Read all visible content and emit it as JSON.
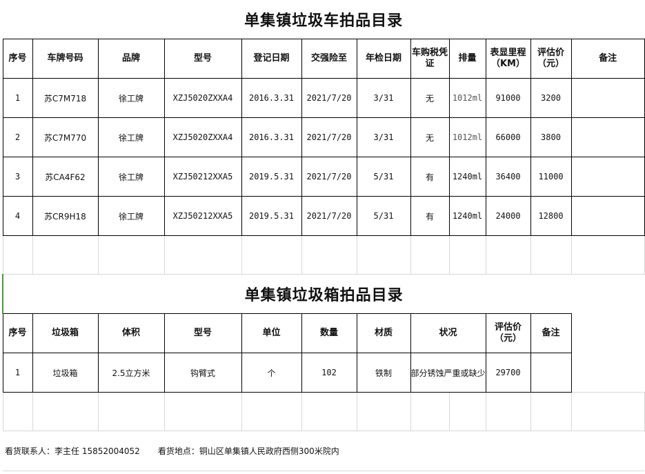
{
  "vehicles": {
    "title": "单集镇垃圾车拍品目录",
    "headers": [
      "序号",
      "车牌号码",
      "品牌",
      "型号",
      "登记日期",
      "交强险至",
      "年检日期",
      "车购税凭证",
      "排量",
      "表显里程（KM）",
      "评估价（元）",
      "备注"
    ],
    "rows": [
      [
        "1",
        "苏C7M718",
        "徐工牌",
        "XZJ5020ZXXA4",
        "2016.3.31",
        "2021/7/20",
        "3/31",
        "无",
        "1012ml",
        "91000",
        "3200",
        ""
      ],
      [
        "2",
        "苏C7M770",
        "徐工牌",
        "XZJ5020ZXXA4",
        "2016.3.31",
        "2021/7/20",
        "3/31",
        "无",
        "1012ml",
        "66000",
        "3800",
        ""
      ],
      [
        "3",
        "苏CA4F62",
        "徐工牌",
        "XZJ50212XXA5",
        "2019.5.31",
        "2021/7/20",
        "5/31",
        "有",
        "1240ml",
        "36400",
        "11000",
        ""
      ],
      [
        "4",
        "苏CR9H18",
        "徐工牌",
        "XZJ50212XXA5",
        "2019.5.31",
        "2021/7/20",
        "5/31",
        "有",
        "1240ml",
        "24000",
        "12800",
        ""
      ]
    ]
  },
  "bins": {
    "title": "单集镇垃圾箱拍品目录",
    "headers": [
      "序号",
      "垃圾箱",
      "体积",
      "型号",
      "单位",
      "数量",
      "材质",
      "状况",
      "评估价（元）",
      "备注"
    ],
    "rows": [
      [
        "1",
        "垃圾箱",
        "2.5立方米",
        "钩臂式",
        "个",
        "102",
        "铁制",
        "部分锈蚀严重或缺少部件",
        "29700",
        ""
      ]
    ]
  },
  "footer": {
    "contact": "看货联系人：李主任 15852004052",
    "location": "看货地点：铜山区单集镇人民政府西侧300米院内"
  }
}
